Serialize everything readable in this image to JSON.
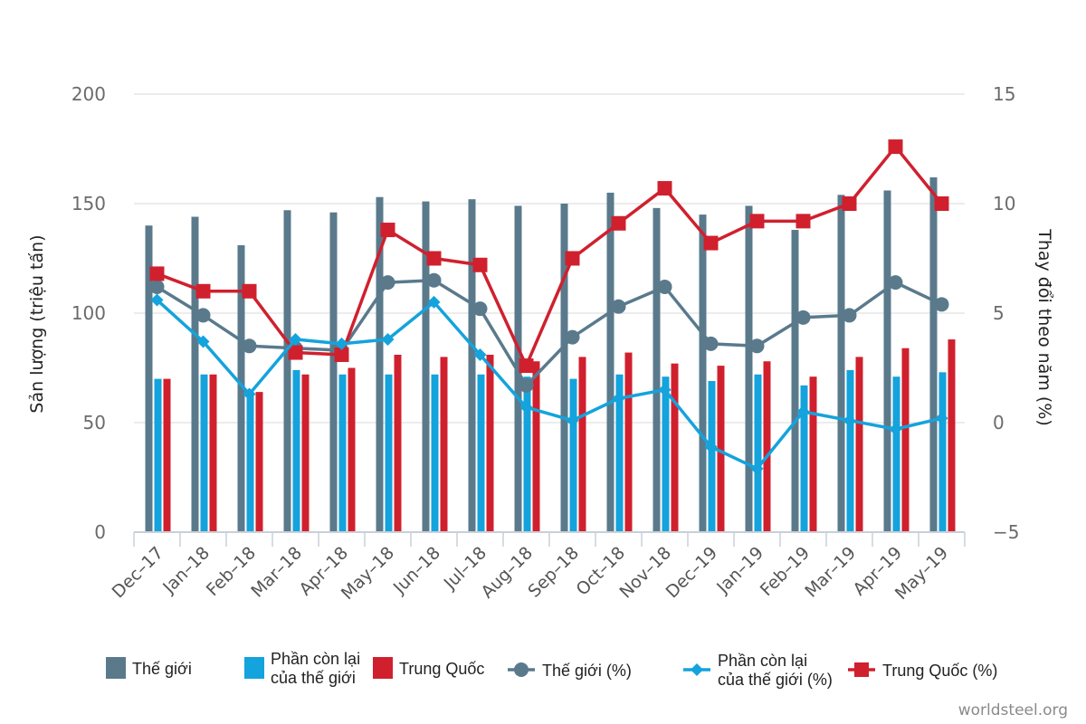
{
  "chart_data": {
    "type": "bar",
    "categories": [
      "Dec–17",
      "Jan–18",
      "Feb–18",
      "Mar–18",
      "Apr–18",
      "May–18",
      "Jun–18",
      "Jul–18",
      "Aug–18",
      "Sep–18",
      "Oct–18",
      "Nov–18",
      "Dec–19",
      "Jan–19",
      "Feb–19",
      "Mar–19",
      "Apr–19",
      "May–19"
    ],
    "ylabel": "Sản lượng (triệu tấn)",
    "ylabel_right": "Thay đổi theo năm (%)",
    "ylim": [
      0,
      200
    ],
    "ylim_right": [
      -5,
      15
    ],
    "yticks": [
      "200",
      "150",
      "100",
      "50",
      "0"
    ],
    "yticks_right": [
      "15",
      "10",
      "5",
      "0",
      "−5"
    ],
    "grid": true,
    "legend_position": "bottom",
    "bar_series": [
      {
        "name": "Thế giới",
        "color": "#5a7a8c",
        "values": [
          140,
          144,
          131,
          147,
          146,
          153,
          151,
          152,
          149,
          150,
          155,
          148,
          145,
          149,
          138,
          154,
          156,
          162
        ]
      },
      {
        "name": "Phần còn lại\ncủa thế giới",
        "color": "#14a3dc",
        "values": [
          70,
          72,
          64,
          74,
          72,
          72,
          72,
          72,
          71,
          70,
          72,
          71,
          69,
          72,
          67,
          74,
          71,
          73
        ]
      },
      {
        "name": "Trung Quốc",
        "color": "#d0202e",
        "values": [
          70,
          72,
          64,
          72,
          75,
          81,
          80,
          81,
          78,
          80,
          82,
          77,
          76,
          78,
          71,
          80,
          84,
          88
        ]
      }
    ],
    "line_series": [
      {
        "name": "Thế giới (%)",
        "color": "#5a7a8c",
        "marker": "circle",
        "values": [
          6.2,
          4.9,
          3.5,
          3.4,
          3.3,
          6.4,
          6.5,
          5.2,
          1.7,
          3.9,
          5.3,
          6.2,
          3.6,
          3.5,
          4.8,
          4.9,
          6.4,
          5.4
        ]
      },
      {
        "name": "Phần còn lại\ncủa thế giới (%)",
        "color": "#14a3dc",
        "marker": "diamond",
        "values": [
          5.6,
          3.7,
          1.3,
          3.8,
          3.6,
          3.8,
          5.5,
          3.1,
          0.7,
          0.1,
          1.1,
          1.5,
          -1.1,
          -2.1,
          0.5,
          0.1,
          -0.3,
          0.2
        ]
      },
      {
        "name": "Trung Quốc (%)",
        "color": "#d0202e",
        "marker": "square",
        "values": [
          6.8,
          6.0,
          6.0,
          3.2,
          3.1,
          8.8,
          7.5,
          7.2,
          2.6,
          7.5,
          9.1,
          10.7,
          8.2,
          9.2,
          9.2,
          10.0,
          12.6,
          10.0
        ]
      }
    ]
  },
  "legend": {
    "items": [
      {
        "label_lines": [
          "Thế giới"
        ],
        "symbol": "bar",
        "color": "#5a7a8c"
      },
      {
        "label_lines": [
          "Phần còn lại",
          "của thế giới"
        ],
        "symbol": "bar",
        "color": "#14a3dc"
      },
      {
        "label_lines": [
          "Trung Quốc"
        ],
        "symbol": "bar",
        "color": "#d0202e"
      },
      {
        "label_lines": [
          "Thế giới (%)"
        ],
        "symbol": "circle",
        "color": "#5a7a8c"
      },
      {
        "label_lines": [
          "Phần còn lại",
          "của thế giới (%)"
        ],
        "symbol": "diamond",
        "color": "#14a3dc"
      },
      {
        "label_lines": [
          "Trung Quốc (%)"
        ],
        "symbol": "square",
        "color": "#d0202e"
      }
    ]
  },
  "watermark": "worldsteel.org",
  "colors": {
    "grid": "#e1e1e1",
    "axis": "#c8d0d8"
  }
}
